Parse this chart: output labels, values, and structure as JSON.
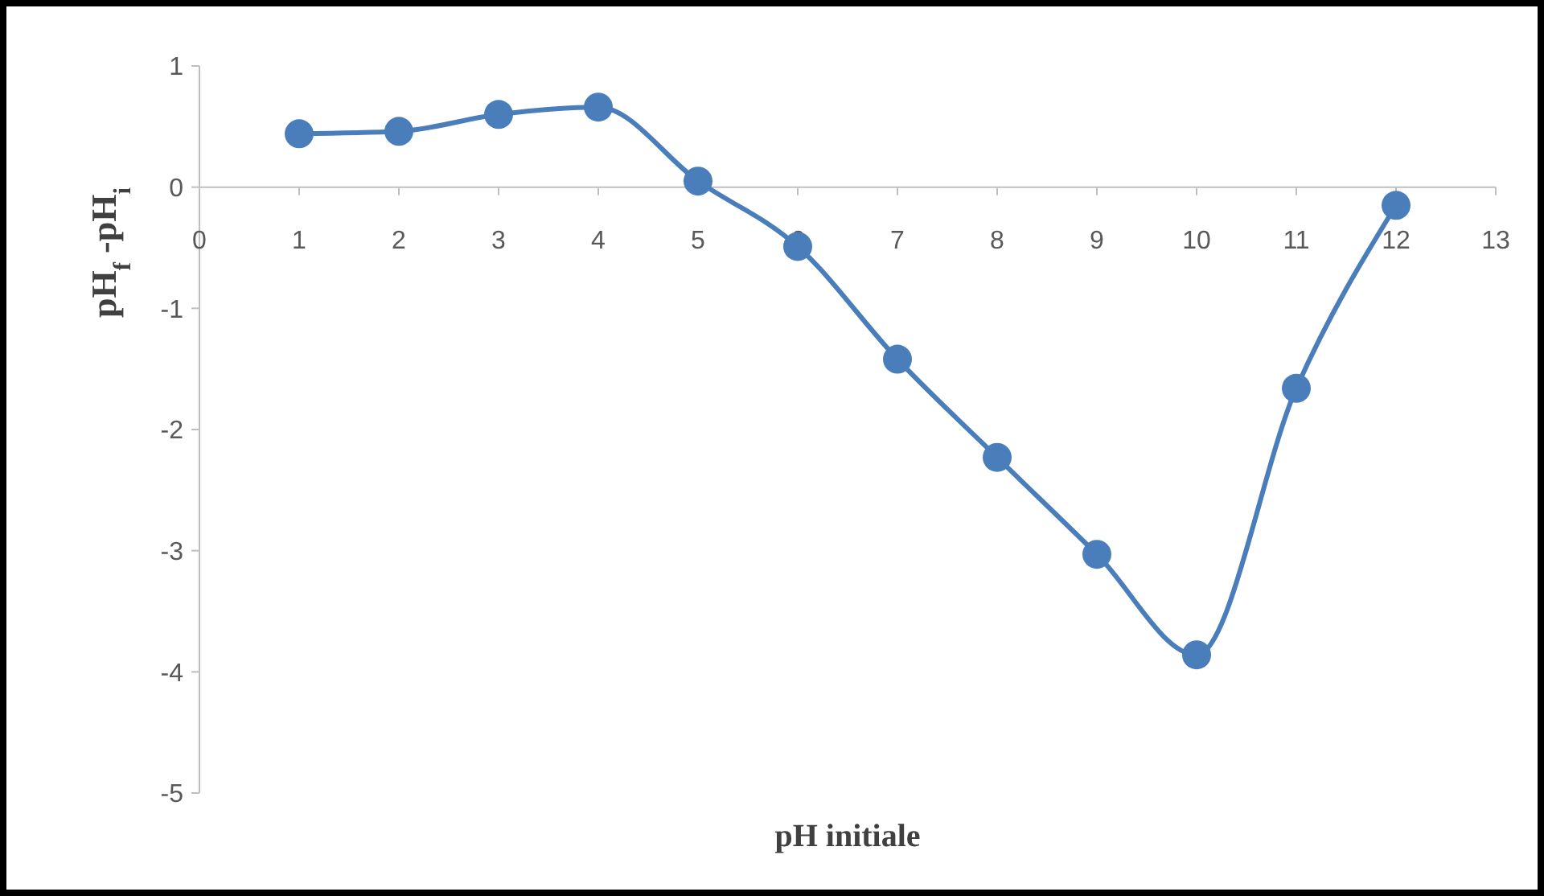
{
  "chart_data": {
    "type": "line",
    "xlabel": "pH initiale",
    "ylabel": "pH$_{f}$ -pH$_{i}$",
    "x": [
      1,
      2,
      3,
      4,
      5,
      6,
      7,
      8,
      9,
      10,
      11,
      12
    ],
    "series": [
      {
        "color": "#4a7ebb",
        "values": [
          0.44,
          0.46,
          0.6,
          0.66,
          0.05,
          -0.49,
          -1.42,
          -2.23,
          -3.03,
          -3.86,
          -1.66,
          -0.15
        ]
      }
    ],
    "xlim": [
      0,
      13
    ],
    "xticks": [
      0,
      1,
      2,
      3,
      4,
      5,
      6,
      7,
      8,
      9,
      10,
      11,
      12,
      13
    ],
    "ylim": [
      -5,
      1
    ],
    "yticks": [
      -5,
      -4,
      -3,
      -2,
      -1,
      0,
      1
    ],
    "grid": false,
    "marker": "circle",
    "line_style": "solid"
  }
}
